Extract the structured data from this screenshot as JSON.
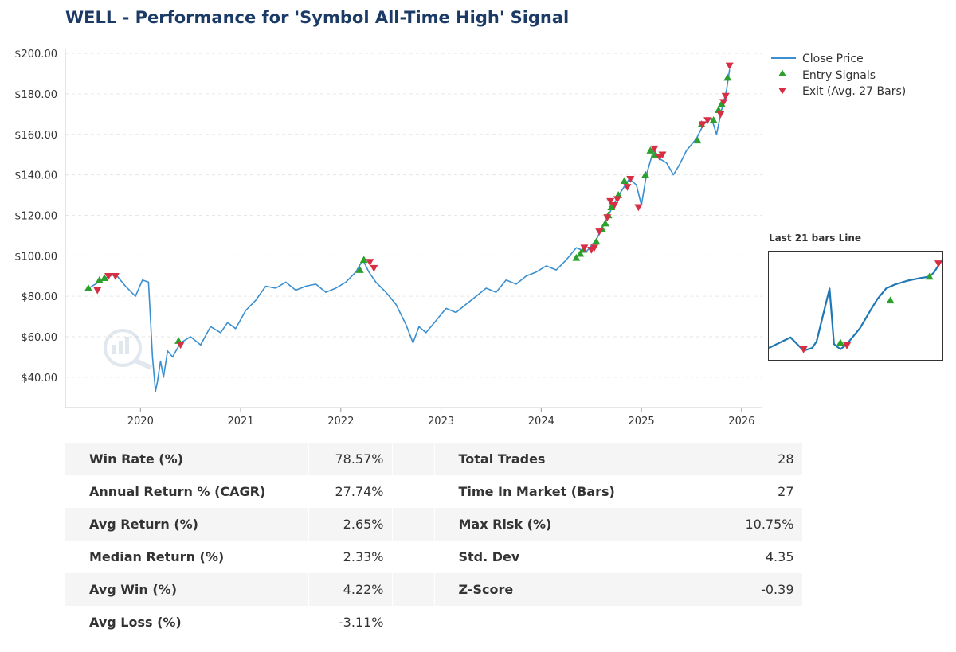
{
  "colors": {
    "title": "#1b3a66",
    "price_line": "#3a8fd0",
    "entry": "#2ca02c",
    "exit": "#d62f44",
    "grid": "#e6e6e6",
    "inset_line": "#1f77b4",
    "table_shade": "#f5f5f5"
  },
  "chart_data": {
    "type": "line",
    "title": "WELL - Performance for 'Symbol All-Time High' Signal",
    "xlabel": "",
    "ylabel": "",
    "x_ticks": [
      "2020",
      "2021",
      "2022",
      "2023",
      "2024",
      "2025",
      "2026"
    ],
    "x_range": [
      2019.25,
      2026.2
    ],
    "y_ticks": [
      "$40.00",
      "$60.00",
      "$80.00",
      "$100.00",
      "$120.00",
      "$140.00",
      "$160.00",
      "$180.00",
      "$200.00"
    ],
    "y_range": [
      25,
      202
    ],
    "grid": true,
    "legend_position": "right-top",
    "series": [
      {
        "name": "Close Price",
        "x": [
          2019.45,
          2019.55,
          2019.65,
          2019.75,
          2019.85,
          2019.95,
          2020.02,
          2020.08,
          2020.12,
          2020.15,
          2020.17,
          2020.2,
          2020.23,
          2020.27,
          2020.32,
          2020.4,
          2020.5,
          2020.6,
          2020.7,
          2020.8,
          2020.87,
          2020.95,
          2021.05,
          2021.15,
          2021.25,
          2021.35,
          2021.45,
          2021.55,
          2021.65,
          2021.75,
          2021.85,
          2021.95,
          2022.05,
          2022.15,
          2022.22,
          2022.28,
          2022.35,
          2022.45,
          2022.55,
          2022.65,
          2022.72,
          2022.78,
          2022.85,
          2022.95,
          2023.05,
          2023.15,
          2023.25,
          2023.35,
          2023.45,
          2023.55,
          2023.65,
          2023.75,
          2023.85,
          2023.95,
          2024.05,
          2024.15,
          2024.25,
          2024.35,
          2024.45,
          2024.55,
          2024.65,
          2024.72,
          2024.8,
          2024.88,
          2024.95,
          2025.0,
          2025.05,
          2025.12,
          2025.18,
          2025.25,
          2025.32,
          2025.38,
          2025.45,
          2025.55,
          2025.62,
          2025.7,
          2025.75,
          2025.8,
          2025.85,
          2025.88
        ],
        "y": [
          83,
          86,
          89,
          91,
          85,
          80,
          88,
          87,
          50,
          33,
          38,
          48,
          40,
          53,
          50,
          57,
          60,
          56,
          65,
          62,
          67,
          64,
          73,
          78,
          85,
          84,
          87,
          83,
          85,
          86,
          82,
          84,
          87,
          92,
          98,
          92,
          87,
          82,
          76,
          66,
          57,
          65,
          62,
          68,
          74,
          72,
          76,
          80,
          84,
          82,
          88,
          86,
          90,
          92,
          95,
          93,
          98,
          104,
          102,
          108,
          118,
          125,
          132,
          138,
          135,
          125,
          140,
          152,
          148,
          146,
          140,
          145,
          152,
          158,
          165,
          168,
          160,
          172,
          182,
          192
        ]
      },
      {
        "name": "Entry Signals",
        "x": [
          2019.48,
          2019.59,
          2019.64,
          2020.38,
          2022.19,
          2022.23,
          2024.35,
          2024.39,
          2024.42,
          2024.55,
          2024.61,
          2024.64,
          2024.67,
          2024.7,
          2024.77,
          2024.83,
          2025.04,
          2025.09,
          2025.14,
          2025.56,
          2025.6,
          2025.72,
          2025.77,
          2025.8,
          2025.86
        ],
        "y": [
          84,
          88,
          89,
          58,
          93,
          98,
          99,
          101,
          103,
          107,
          113,
          116,
          120,
          124,
          130,
          137,
          140,
          152,
          150,
          157,
          165,
          167,
          172,
          175,
          188
        ]
      },
      {
        "name": "Exit (Avg. 27 Bars)",
        "x": [
          2019.57,
          2019.68,
          2019.75,
          2020.4,
          2022.29,
          2022.33,
          2024.43,
          2024.5,
          2024.53,
          2024.58,
          2024.66,
          2024.69,
          2024.73,
          2024.76,
          2024.86,
          2024.89,
          2024.97,
          2025.13,
          2025.18,
          2025.21,
          2025.61,
          2025.66,
          2025.79,
          2025.82,
          2025.84,
          2025.88
        ],
        "y": [
          83,
          90,
          90,
          56,
          97,
          94,
          104,
          103,
          104,
          112,
          119,
          127,
          125,
          128,
          134,
          138,
          124,
          153,
          149,
          150,
          165,
          167,
          170,
          176,
          179,
          194
        ]
      }
    ],
    "inset": {
      "title": "Last 21 bars Line",
      "line": [
        [
          0,
          1.5
        ],
        [
          5,
          5.5
        ],
        [
          8,
          0.5
        ],
        [
          10,
          1.5
        ],
        [
          11,
          4
        ],
        [
          14,
          24
        ],
        [
          15,
          3
        ],
        [
          16.5,
          1
        ],
        [
          18,
          3
        ],
        [
          21,
          9
        ],
        [
          23.5,
          16
        ],
        [
          25,
          20
        ],
        [
          27,
          24
        ],
        [
          29,
          25.5
        ],
        [
          32,
          27
        ],
        [
          35,
          28
        ],
        [
          37,
          28.5
        ],
        [
          38,
          30
        ],
        [
          39,
          32.5
        ],
        [
          40,
          35
        ]
      ],
      "x_range": [
        0,
        40
      ],
      "y_range": [
        -3,
        38
      ],
      "entries": [
        [
          16.5,
          3.5
        ],
        [
          28,
          19.5
        ],
        [
          37,
          28.5
        ]
      ],
      "exits": [
        [
          8,
          1
        ],
        [
          18,
          2.5
        ],
        [
          40,
          33.5
        ]
      ]
    }
  },
  "stats_table": [
    {
      "l1": "Win Rate (%)",
      "v1": "78.57%",
      "l2": "Total Trades",
      "v2": "28"
    },
    {
      "l1": "Annual Return % (CAGR)",
      "v1": "27.74%",
      "l2": "Time In Market (Bars)",
      "v2": "27"
    },
    {
      "l1": "Avg Return (%)",
      "v1": "2.65%",
      "l2": "Max Risk (%)",
      "v2": "10.75%"
    },
    {
      "l1": "Median Return (%)",
      "v1": "2.33%",
      "l2": "Std. Dev",
      "v2": "4.35"
    },
    {
      "l1": "Avg Win (%)",
      "v1": "4.22%",
      "l2": "Z-Score",
      "v2": "-0.39"
    },
    {
      "l1": "Avg Loss (%)",
      "v1": "-3.11%",
      "l2": "",
      "v2": ""
    }
  ]
}
